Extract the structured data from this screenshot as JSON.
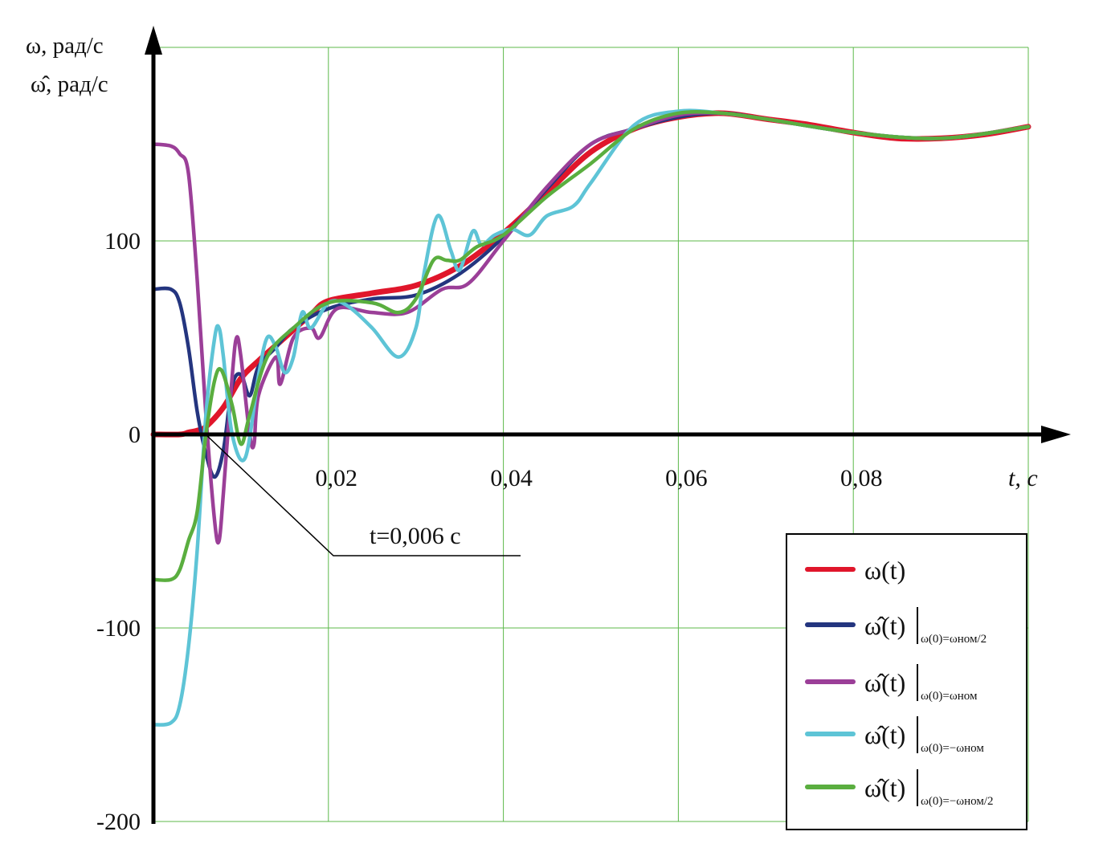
{
  "chart_data": {
    "type": "line",
    "xlabel": "t, с",
    "ylabel_lines": [
      "ω, рад/с",
      "ω̂, рад/с"
    ],
    "xlim": [
      0,
      0.1
    ],
    "ylim": [
      -200,
      200
    ],
    "x_ticks": [
      {
        "v": 0.02,
        "label": "0,02"
      },
      {
        "v": 0.04,
        "label": "0,04"
      },
      {
        "v": 0.06,
        "label": "0,06"
      },
      {
        "v": 0.08,
        "label": "0,08"
      }
    ],
    "y_ticks": [
      {
        "v": 100,
        "label": "100"
      },
      {
        "v": 0,
        "label": "0"
      },
      {
        "v": -100,
        "label": "-100"
      },
      {
        "v": -200,
        "label": "-200"
      }
    ],
    "grid": true,
    "grid_color": "#5cb84a",
    "legend_position": "bottom-right",
    "annotation": {
      "text": "t=0,006 с",
      "x": 0.006,
      "y": 0
    },
    "series": [
      {
        "name": "ω(t)",
        "main": "ω(t)",
        "condition": "",
        "color": "#e0162b",
        "x": [
          0,
          0.003,
          0.004,
          0.005,
          0.006,
          0.008,
          0.01,
          0.012,
          0.015,
          0.018,
          0.02,
          0.025,
          0.03,
          0.035,
          0.04,
          0.045,
          0.05,
          0.055,
          0.06,
          0.065,
          0.07,
          0.075,
          0.08,
          0.085,
          0.09,
          0.095,
          0.1
        ],
        "y": [
          0,
          0,
          1,
          2,
          4,
          14,
          29,
          38,
          50,
          62,
          69,
          73,
          77,
          87,
          104,
          125,
          146,
          158,
          164,
          166,
          163,
          160,
          156,
          153,
          153,
          155,
          159
        ]
      },
      {
        "name": "ω̂(t)|ω(0)=ωном/2",
        "main": "ω̂(t)",
        "condition": "ω(0)=ωном/2",
        "color": "#24357f",
        "x": [
          0,
          0.002,
          0.003,
          0.004,
          0.005,
          0.006,
          0.007,
          0.008,
          0.009,
          0.01,
          0.011,
          0.012,
          0.014,
          0.016,
          0.02,
          0.025,
          0.03,
          0.035,
          0.04,
          0.045,
          0.05,
          0.055,
          0.06,
          0.065,
          0.07,
          0.08,
          0.09,
          0.1
        ],
        "y": [
          75,
          75,
          68,
          45,
          12,
          -10,
          -22,
          -8,
          25,
          31,
          20,
          35,
          45,
          55,
          65,
          70,
          72,
          83,
          102,
          127,
          150,
          158,
          164,
          166,
          163,
          156,
          153,
          159
        ]
      },
      {
        "name": "ω̂(t)|ω(0)=ωном",
        "main": "ω̂(t)",
        "condition": "ω(0)=ωном",
        "color": "#9b3f98",
        "x": [
          0,
          0.002,
          0.003,
          0.004,
          0.005,
          0.006,
          0.007,
          0.0075,
          0.008,
          0.009,
          0.0095,
          0.01,
          0.011,
          0.0115,
          0.012,
          0.014,
          0.0145,
          0.016,
          0.018,
          0.019,
          0.021,
          0.025,
          0.029,
          0.033,
          0.036,
          0.04,
          0.045,
          0.05,
          0.055,
          0.06,
          0.065,
          0.07,
          0.08,
          0.09,
          0.1
        ],
        "y": [
          150,
          149,
          145,
          135,
          80,
          10,
          -45,
          -55,
          -30,
          30,
          50,
          40,
          0,
          -5,
          20,
          40,
          26,
          50,
          55,
          50,
          65,
          63,
          63,
          75,
          78,
          100,
          128,
          150,
          158,
          165,
          166,
          163,
          156,
          153,
          159
        ]
      },
      {
        "name": "ω̂(t)|ω(0)=−ωном",
        "main": "ω̂(t)",
        "condition": "ω(0)=−ωном",
        "color": "#5ec4d6",
        "x": [
          0,
          0.002,
          0.003,
          0.004,
          0.005,
          0.006,
          0.007,
          0.0075,
          0.008,
          0.009,
          0.0105,
          0.012,
          0.013,
          0.014,
          0.015,
          0.016,
          0.017,
          0.018,
          0.02,
          0.022,
          0.025,
          0.028,
          0.03,
          0.031,
          0.0325,
          0.034,
          0.035,
          0.0365,
          0.0375,
          0.039,
          0.041,
          0.043,
          0.045,
          0.048,
          0.05,
          0.055,
          0.06,
          0.065,
          0.07,
          0.08,
          0.09,
          0.1
        ],
        "y": [
          -150,
          -149,
          -140,
          -110,
          -60,
          10,
          50,
          55,
          40,
          0,
          -12,
          30,
          50,
          45,
          32,
          40,
          63,
          55,
          68,
          67,
          55,
          40,
          55,
          85,
          113,
          95,
          85,
          105,
          98,
          103,
          106,
          103,
          113,
          118,
          130,
          160,
          167,
          166,
          163,
          156,
          153,
          159
        ]
      },
      {
        "name": "ω̂(t)|ω(0)=−ωном/2",
        "main": "ω̂(t)",
        "condition": "ω(0)=−ωном/2",
        "color": "#5aae3f",
        "x": [
          0,
          0.002,
          0.003,
          0.004,
          0.005,
          0.006,
          0.007,
          0.0078,
          0.009,
          0.01,
          0.011,
          0.013,
          0.016,
          0.02,
          0.025,
          0.028,
          0.03,
          0.032,
          0.0335,
          0.035,
          0.037,
          0.04,
          0.045,
          0.05,
          0.055,
          0.06,
          0.065,
          0.07,
          0.08,
          0.09,
          0.1
        ],
        "y": [
          -75,
          -75,
          -70,
          -55,
          -40,
          0,
          28,
          33,
          15,
          -5,
          10,
          40,
          55,
          68,
          68,
          63,
          70,
          90,
          90,
          90,
          97,
          103,
          123,
          140,
          158,
          166,
          166,
          163,
          156,
          153,
          159
        ]
      }
    ]
  }
}
